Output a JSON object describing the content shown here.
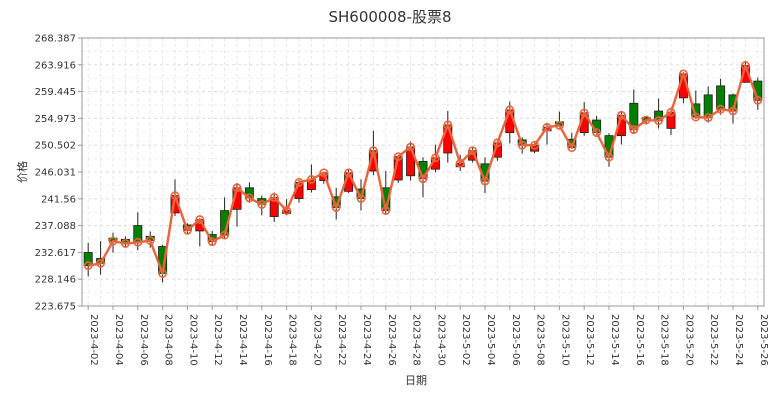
{
  "chart_data": {
    "type": "candlestick",
    "title": "SH600008-股票8",
    "xlabel": "日期",
    "ylabel": "价格",
    "ylim": [
      223.675,
      268.387
    ],
    "y_ticks": [
      "223.675",
      "228.146",
      "232.617",
      "237.088",
      "241.56",
      "246.031",
      "250.502",
      "254.973",
      "259.445",
      "263.916",
      "268.387"
    ],
    "grid": true,
    "colors": {
      "up": "#ff0000",
      "down": "#008000",
      "line": "#e8643c",
      "grid": "#dddddd",
      "frame": "#999999"
    },
    "x_tick_labels": [
      "2023-4-02",
      "2023-4-04",
      "2023-4-06",
      "2023-4-08",
      "2023-4-10",
      "2023-4-12",
      "2023-4-14",
      "2023-4-16",
      "2023-4-18",
      "2023-4-20",
      "2023-4-22",
      "2023-4-24",
      "2023-4-26",
      "2023-4-28",
      "2023-4-30",
      "2023-5-02",
      "2023-5-04",
      "2023-5-06",
      "2023-5-08",
      "2023-5-10",
      "2023-5-12",
      "2023-5-14",
      "2023-5-16",
      "2023-5-18",
      "2023-5-20",
      "2023-5-22",
      "2023-5-24",
      "2023-5-26"
    ],
    "candles": [
      {
        "date": "2023-4-02",
        "open": 232.6,
        "close": 230.4,
        "high": 234.2,
        "low": 228.6
      },
      {
        "date": "2023-4-03",
        "open": 231.6,
        "close": 230.8,
        "high": 234.5,
        "low": 228.9
      },
      {
        "date": "2023-4-04",
        "open": 235.0,
        "close": 234.5,
        "high": 235.9,
        "low": 232.6
      },
      {
        "date": "2023-4-05",
        "open": 234.8,
        "close": 234.1,
        "high": 235.3,
        "low": 233.5
      },
      {
        "date": "2023-4-06",
        "open": 237.1,
        "close": 234.3,
        "high": 239.3,
        "low": 233.0
      },
      {
        "date": "2023-4-07",
        "open": 235.3,
        "close": 234.6,
        "high": 236.1,
        "low": 233.4
      },
      {
        "date": "2023-4-08",
        "open": 233.6,
        "close": 229.1,
        "high": 233.9,
        "low": 227.6
      },
      {
        "date": "2023-4-09",
        "open": 239.2,
        "close": 242.1,
        "high": 244.8,
        "low": 238.7
      },
      {
        "date": "2023-4-10",
        "open": 237.2,
        "close": 236.3,
        "high": 237.5,
        "low": 235.6
      },
      {
        "date": "2023-4-11",
        "open": 236.2,
        "close": 238.1,
        "high": 238.4,
        "low": 233.6
      },
      {
        "date": "2023-4-12",
        "open": 235.6,
        "close": 234.4,
        "high": 236.2,
        "low": 233.9
      },
      {
        "date": "2023-4-13",
        "open": 239.6,
        "close": 235.5,
        "high": 241.8,
        "low": 235.0
      },
      {
        "date": "2023-4-14",
        "open": 239.8,
        "close": 243.4,
        "high": 244.2,
        "low": 236.9
      },
      {
        "date": "2023-4-15",
        "open": 243.4,
        "close": 241.7,
        "high": 244.3,
        "low": 240.9
      },
      {
        "date": "2023-4-16",
        "open": 241.6,
        "close": 240.6,
        "high": 242.1,
        "low": 238.8
      },
      {
        "date": "2023-4-17",
        "open": 238.6,
        "close": 241.8,
        "high": 242.6,
        "low": 237.7
      },
      {
        "date": "2023-4-18",
        "open": 239.1,
        "close": 239.6,
        "high": 241.5,
        "low": 238.8
      },
      {
        "date": "2023-4-19",
        "open": 241.6,
        "close": 244.3,
        "high": 244.7,
        "low": 240.9
      },
      {
        "date": "2023-4-20",
        "open": 243.1,
        "close": 244.8,
        "high": 247.3,
        "low": 242.6
      },
      {
        "date": "2023-4-21",
        "open": 244.6,
        "close": 245.9,
        "high": 246.1,
        "low": 244.1
      },
      {
        "date": "2023-4-22",
        "open": 241.9,
        "close": 240.1,
        "high": 243.4,
        "low": 238.1
      },
      {
        "date": "2023-4-23",
        "open": 242.8,
        "close": 245.9,
        "high": 246.5,
        "low": 242.5
      },
      {
        "date": "2023-4-24",
        "open": 243.2,
        "close": 241.6,
        "high": 244.8,
        "low": 239.6
      },
      {
        "date": "2023-4-25",
        "open": 246.2,
        "close": 249.6,
        "high": 252.9,
        "low": 245.5
      },
      {
        "date": "2023-4-26",
        "open": 243.4,
        "close": 239.6,
        "high": 246.2,
        "low": 238.9
      },
      {
        "date": "2023-4-27",
        "open": 244.7,
        "close": 248.6,
        "high": 248.9,
        "low": 244.2
      },
      {
        "date": "2023-4-28",
        "open": 245.4,
        "close": 250.2,
        "high": 251.1,
        "low": 244.6
      },
      {
        "date": "2023-4-29",
        "open": 247.8,
        "close": 244.9,
        "high": 248.5,
        "low": 241.8
      },
      {
        "date": "2023-4-30",
        "open": 246.5,
        "close": 248.4,
        "high": 250.6,
        "low": 246.0
      },
      {
        "date": "2023-5-01",
        "open": 249.2,
        "close": 253.9,
        "high": 256.2,
        "low": 247.6
      },
      {
        "date": "2023-5-02",
        "open": 246.9,
        "close": 247.5,
        "high": 248.9,
        "low": 246.2
      },
      {
        "date": "2023-5-03",
        "open": 248.0,
        "close": 249.6,
        "high": 250.1,
        "low": 247.6
      },
      {
        "date": "2023-5-04",
        "open": 247.4,
        "close": 244.5,
        "high": 248.5,
        "low": 242.5
      },
      {
        "date": "2023-5-05",
        "open": 248.5,
        "close": 250.9,
        "high": 251.2,
        "low": 247.9
      },
      {
        "date": "2023-5-06",
        "open": 252.6,
        "close": 256.4,
        "high": 257.8,
        "low": 250.8
      },
      {
        "date": "2023-5-07",
        "open": 251.4,
        "close": 250.5,
        "high": 251.8,
        "low": 249.1
      },
      {
        "date": "2023-5-08",
        "open": 249.5,
        "close": 250.5,
        "high": 250.9,
        "low": 249.2
      },
      {
        "date": "2023-5-09",
        "open": 252.9,
        "close": 253.5,
        "high": 254.1,
        "low": 250.6
      },
      {
        "date": "2023-5-10",
        "open": 254.4,
        "close": 253.8,
        "high": 256.1,
        "low": 253.5
      },
      {
        "date": "2023-5-11",
        "open": 251.5,
        "close": 250.1,
        "high": 252.6,
        "low": 249.9
      },
      {
        "date": "2023-5-12",
        "open": 252.6,
        "close": 255.9,
        "high": 257.7,
        "low": 252.1
      },
      {
        "date": "2023-5-13",
        "open": 254.7,
        "close": 252.6,
        "high": 255.4,
        "low": 252.2
      },
      {
        "date": "2023-5-14",
        "open": 252.1,
        "close": 248.5,
        "high": 252.5,
        "low": 246.9
      },
      {
        "date": "2023-5-15",
        "open": 252.1,
        "close": 255.5,
        "high": 256.1,
        "low": 250.6
      },
      {
        "date": "2023-5-16",
        "open": 257.5,
        "close": 253.1,
        "high": 259.8,
        "low": 252.6
      },
      {
        "date": "2023-5-17",
        "open": 255.1,
        "close": 254.7,
        "high": 255.4,
        "low": 254.2
      },
      {
        "date": "2023-5-18",
        "open": 256.2,
        "close": 254.6,
        "high": 258.3,
        "low": 253.3
      },
      {
        "date": "2023-5-19",
        "open": 253.3,
        "close": 256.0,
        "high": 256.8,
        "low": 252.2
      },
      {
        "date": "2023-5-20",
        "open": 258.4,
        "close": 262.4,
        "high": 262.7,
        "low": 257.5
      },
      {
        "date": "2023-5-21",
        "open": 257.4,
        "close": 255.2,
        "high": 259.6,
        "low": 254.9
      },
      {
        "date": "2023-5-22",
        "open": 258.9,
        "close": 255.1,
        "high": 260.3,
        "low": 254.3
      },
      {
        "date": "2023-5-23",
        "open": 260.4,
        "close": 256.5,
        "high": 261.6,
        "low": 255.6
      },
      {
        "date": "2023-5-24",
        "open": 258.9,
        "close": 256.2,
        "high": 259.1,
        "low": 254.1
      },
      {
        "date": "2023-5-25",
        "open": 261.0,
        "close": 263.8,
        "high": 264.6,
        "low": 260.9
      },
      {
        "date": "2023-5-26",
        "open": 261.2,
        "close": 258.0,
        "high": 261.8,
        "low": 256.4
      }
    ]
  }
}
